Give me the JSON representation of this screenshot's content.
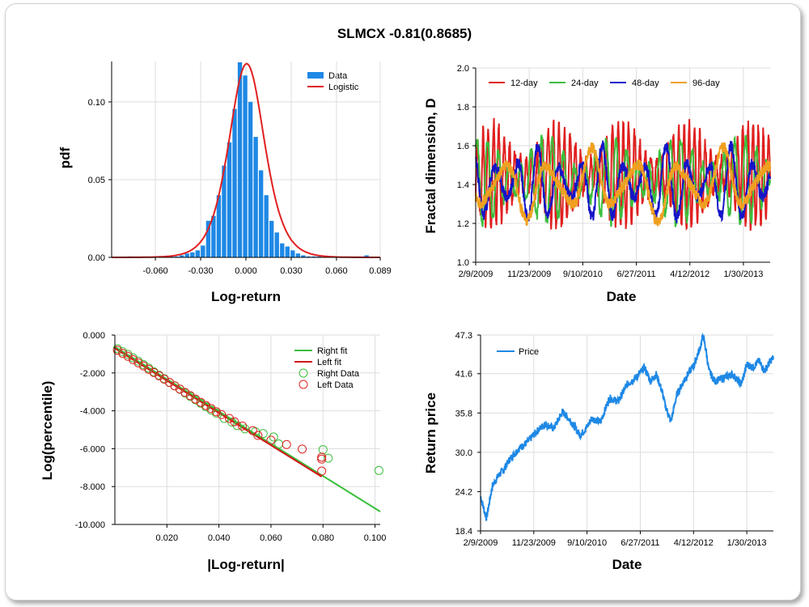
{
  "title": "SLMCX -0.81(0.8685)",
  "chart_data": [
    {
      "id": "pdf",
      "type": "bar",
      "xlabel": "Log-return",
      "ylabel": "pdf",
      "xlim": [
        -0.089,
        0.089
      ],
      "ylim": [
        0,
        0.126
      ],
      "x_ticks": [
        -0.06,
        -0.03,
        0.0,
        0.03,
        0.06,
        0.089
      ],
      "x_tick_labels": [
        "-0.060",
        "-0.030",
        "0.000",
        "0.030",
        "0.060",
        "0.089"
      ],
      "y_ticks": [
        0,
        0.05,
        0.1
      ],
      "y_tick_labels": [
        "0.00",
        "0.05",
        "0.10"
      ],
      "bin_width": 0.0035,
      "series": [
        {
          "name": "Data",
          "type": "bar",
          "color": "#1e88e5",
          "x": [
            -0.0775,
            -0.074,
            -0.0705,
            -0.067,
            -0.0635,
            -0.06,
            -0.0565,
            -0.053,
            -0.0495,
            -0.046,
            -0.0425,
            -0.039,
            -0.0355,
            -0.032,
            -0.0285,
            -0.025,
            -0.0215,
            -0.018,
            -0.0145,
            -0.011,
            -0.0075,
            -0.004,
            -0.0005,
            0.003,
            0.0065,
            0.01,
            0.0135,
            0.017,
            0.0205,
            0.024,
            0.0275,
            0.031,
            0.0345,
            0.038,
            0.0415,
            0.045,
            0.0485,
            0.052,
            0.0555,
            0.059,
            0.0625,
            0.066,
            0.0695,
            0.073,
            0.0765,
            0.08,
            0.0835
          ],
          "y": [
            0.0006,
            0,
            0,
            0,
            0,
            0,
            0.0006,
            0.0006,
            0.0006,
            0.0006,
            0.0013,
            0.0025,
            0.0032,
            0.0045,
            0.0076,
            0.0235,
            0.0267,
            0.04,
            0.059,
            0.074,
            0.0955,
            0.1255,
            0.117,
            0.1,
            0.0775,
            0.056,
            0.04,
            0.0235,
            0.016,
            0.009,
            0.007,
            0.0045,
            0.0025,
            0.0013,
            0.0006,
            0.0006,
            0.0006,
            0,
            0,
            0,
            0,
            0,
            0,
            0,
            0,
            0.0013,
            0
          ]
        },
        {
          "name": "Logistic",
          "type": "line",
          "color": "#e02020",
          "loc": 0.0005,
          "scale": 0.0079
        }
      ],
      "legend_position": "top-right"
    },
    {
      "id": "fractal",
      "type": "line",
      "xlabel": "Date",
      "ylabel": "Fractal dimension, D",
      "ylim": [
        1.0,
        2.0
      ],
      "y_ticks": [
        1.0,
        1.2,
        1.4,
        1.6,
        1.8,
        2.0
      ],
      "y_tick_labels": [
        "1.0",
        "1.2",
        "1.4",
        "1.6",
        "1.8",
        "2.0"
      ],
      "x_tick_labels": [
        "2/9/2009",
        "11/23/2009",
        "9/10/2010",
        "6/27/2011",
        "4/12/2012",
        "1/30/2013"
      ],
      "series": [
        {
          "name": "12-day",
          "color": "#e02020",
          "period": 12,
          "center": 1.45,
          "amp": 0.27
        },
        {
          "name": "24-day",
          "color": "#3cbf3c",
          "period": 24,
          "center": 1.42,
          "amp": 0.22
        },
        {
          "name": "48-day",
          "color": "#1515c8",
          "period": 48,
          "center": 1.4,
          "amp": 0.2
        },
        {
          "name": "96-day",
          "color": "#f0a020",
          "period": 96,
          "center": 1.4,
          "amp": 0.19
        }
      ],
      "legend_position": "top"
    },
    {
      "id": "tail",
      "type": "scatter",
      "xlabel": "|Log-return|",
      "ylabel": "Log(percentile)",
      "xlim": [
        0,
        0.102
      ],
      "ylim": [
        -10.0,
        0.0
      ],
      "x_ticks": [
        0.02,
        0.04,
        0.06,
        0.08,
        0.1
      ],
      "x_tick_labels": [
        "0.020",
        "0.040",
        "0.060",
        "0.080",
        "0.100"
      ],
      "y_ticks": [
        0,
        -2,
        -4,
        -6,
        -8,
        -10
      ],
      "y_tick_labels": [
        "0.000",
        "-2.000",
        "-4.000",
        "-6.000",
        "-8.000",
        "-10.000"
      ],
      "series": [
        {
          "name": "Right fit",
          "type": "line",
          "color": "#3cbf3c",
          "x": [
            0.0,
            0.102
          ],
          "y": [
            -0.62,
            -9.32
          ]
        },
        {
          "name": "Left fit",
          "type": "line",
          "color": "#d01818",
          "x": [
            0.0,
            0.0795
          ],
          "y": [
            -0.7,
            -7.48
          ]
        },
        {
          "name": "Right Data",
          "type": "scatter",
          "color": "#3cbf3c",
          "x": [
            0.001,
            0.003,
            0.005,
            0.007,
            0.009,
            0.011,
            0.013,
            0.015,
            0.017,
            0.019,
            0.021,
            0.023,
            0.025,
            0.027,
            0.029,
            0.031,
            0.033,
            0.035,
            0.037,
            0.039,
            0.042,
            0.045,
            0.047,
            0.05,
            0.054,
            0.057,
            0.061,
            0.063,
            0.08,
            0.082,
            0.1015
          ],
          "y": [
            -0.72,
            -0.88,
            -1.02,
            -1.2,
            -1.38,
            -1.56,
            -1.74,
            -1.94,
            -2.12,
            -2.3,
            -2.5,
            -2.68,
            -2.86,
            -3.06,
            -3.24,
            -3.42,
            -3.6,
            -3.78,
            -3.96,
            -4.12,
            -4.4,
            -4.6,
            -4.78,
            -4.95,
            -5.1,
            -5.2,
            -5.38,
            -5.75,
            -6.05,
            -6.5,
            -7.15
          ]
        },
        {
          "name": "Left Data",
          "type": "scatter",
          "color": "#e02020",
          "x": [
            0.001,
            0.003,
            0.005,
            0.007,
            0.009,
            0.011,
            0.013,
            0.015,
            0.017,
            0.019,
            0.021,
            0.023,
            0.025,
            0.027,
            0.029,
            0.031,
            0.033,
            0.035,
            0.037,
            0.039,
            0.041,
            0.044,
            0.046,
            0.049,
            0.053,
            0.055,
            0.06,
            0.066,
            0.072,
            0.0795,
            0.0795,
            0.0795
          ],
          "y": [
            -0.8,
            -0.97,
            -1.12,
            -1.3,
            -1.47,
            -1.63,
            -1.81,
            -1.98,
            -2.15,
            -2.33,
            -2.5,
            -2.68,
            -2.85,
            -3.03,
            -3.2,
            -3.38,
            -3.55,
            -3.72,
            -3.88,
            -4.05,
            -4.2,
            -4.4,
            -4.58,
            -4.8,
            -5.05,
            -5.3,
            -5.55,
            -5.78,
            -6.02,
            -6.45,
            -7.18,
            -6.55
          ]
        }
      ],
      "legend_position": "top-right"
    },
    {
      "id": "price",
      "type": "line",
      "xlabel": "Date",
      "ylabel": "Return price",
      "ylim": [
        18.4,
        47.3
      ],
      "y_ticks": [
        18.4,
        24.2,
        30.0,
        35.8,
        41.6,
        47.3
      ],
      "y_tick_labels": [
        "18.4",
        "24.2",
        "30.0",
        "35.8",
        "41.6",
        "47.3"
      ],
      "x_tick_labels": [
        "2/9/2009",
        "11/23/2009",
        "9/10/2010",
        "6/27/2011",
        "4/12/2012",
        "1/30/2013"
      ],
      "series": [
        {
          "name": "Price",
          "color": "#1e88e5",
          "x": [
            0,
            0.02,
            0.04,
            0.06,
            0.08,
            0.1,
            0.13,
            0.16,
            0.19,
            0.22,
            0.25,
            0.28,
            0.31,
            0.34,
            0.36,
            0.38,
            0.41,
            0.44,
            0.47,
            0.5,
            0.53,
            0.56,
            0.58,
            0.6,
            0.62,
            0.63,
            0.65,
            0.67,
            0.7,
            0.73,
            0.75,
            0.76,
            0.77,
            0.78,
            0.8,
            0.83,
            0.86,
            0.89,
            0.91,
            0.93,
            0.95,
            0.97,
            0.99,
            1.0
          ],
          "y": [
            23.5,
            20.2,
            25.0,
            26.5,
            27.5,
            29.0,
            30.5,
            31.5,
            33.0,
            34.2,
            33.5,
            36.0,
            34.5,
            32.5,
            33.5,
            35.0,
            34.5,
            38.0,
            37.5,
            40.0,
            41.0,
            42.5,
            40.5,
            41.5,
            39.0,
            37.0,
            34.5,
            38.5,
            41.0,
            43.0,
            45.5,
            47.2,
            45.0,
            42.0,
            40.5,
            41.0,
            41.5,
            40.0,
            43.0,
            42.5,
            43.5,
            42.0,
            43.5,
            44.0
          ]
        }
      ],
      "legend_position": "top-left"
    }
  ]
}
